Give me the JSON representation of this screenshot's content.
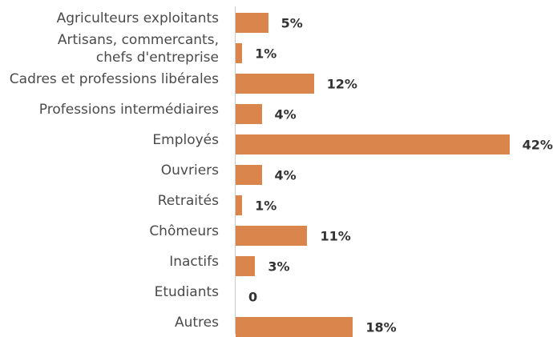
{
  "chart_data": {
    "type": "bar",
    "orientation": "horizontal",
    "categories": [
      "Agriculteurs exploitants",
      "Artisans, commercants,\nchefs d'entreprise",
      "Cadres et professions libérales",
      "Professions intermédiaires",
      "Employés",
      "Ouvriers",
      "Retraités",
      "Chômeurs",
      "Inactifs",
      "Etudiants",
      "Autres"
    ],
    "values": [
      5,
      1,
      12,
      4,
      42,
      4,
      1,
      11,
      3,
      0,
      18
    ],
    "value_labels": [
      "5%",
      "1%",
      "12%",
      "4%",
      "42%",
      "4%",
      "1%",
      "11%",
      "3%",
      "0",
      "18%"
    ],
    "color": "#d9854b",
    "xlim": [
      0,
      45
    ]
  }
}
